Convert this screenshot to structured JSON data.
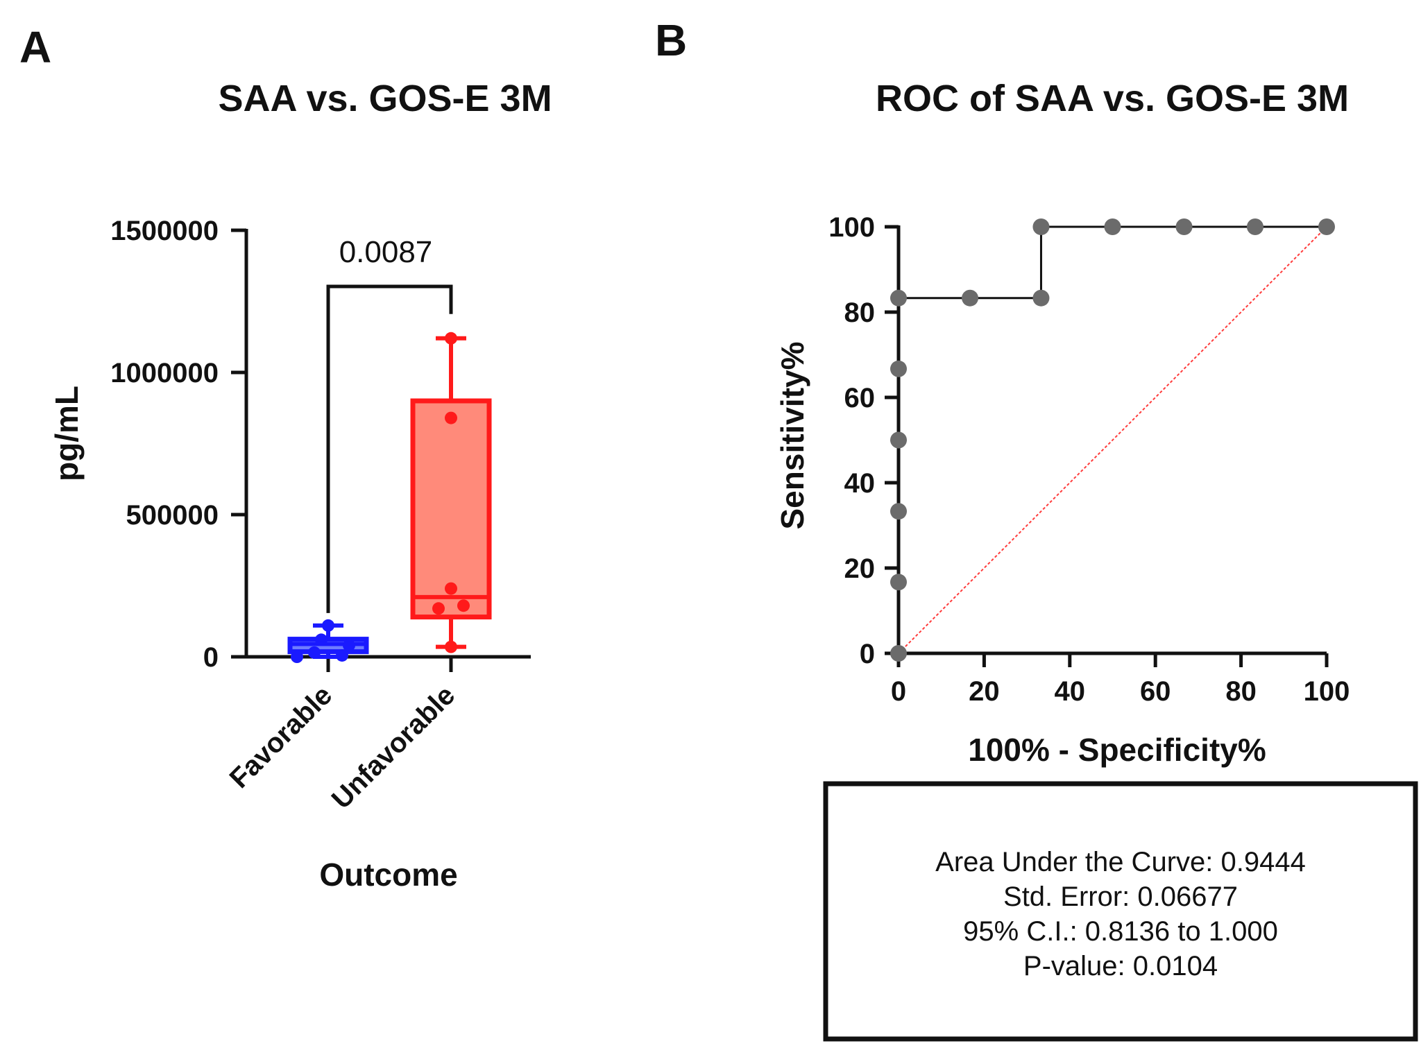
{
  "chart_data": [
    {
      "panel": "A",
      "type": "box",
      "title": "SAA vs. GOS-E 3M",
      "xlabel": "Outcome",
      "ylabel": "pg/mL",
      "ylim": [
        0,
        1500000
      ],
      "yticks": [
        0,
        500000,
        1000000,
        1500000
      ],
      "ytick_labels": [
        "0",
        "500000",
        "1000000",
        "1500000"
      ],
      "categories": [
        "Favorable",
        "Unfavorable"
      ],
      "colors": [
        "#1a1aff",
        "#ff1a1a"
      ],
      "fill_colors": [
        "#6f7cff",
        "#ff8a7a"
      ],
      "boxes": [
        {
          "whisker_low": 0,
          "q1": 18000,
          "median": 45000,
          "q3": 62000,
          "whisker_high": 110000
        },
        {
          "whisker_low": 35000,
          "q1": 140000,
          "median": 210000,
          "q3": 900000,
          "whisker_high": 1120000
        }
      ],
      "points": [
        [
          0,
          5000,
          15000,
          40000,
          60000,
          110000
        ],
        [
          35000,
          170000,
          180000,
          240000,
          840000,
          1120000
        ]
      ],
      "significance": "0.0087"
    },
    {
      "panel": "B",
      "type": "line",
      "title": "ROC of SAA vs. GOS-E 3M",
      "xlabel": "100% - Specificity%",
      "ylabel": "Sensitivity%",
      "xlim": [
        0,
        100
      ],
      "ylim": [
        0,
        100
      ],
      "xticks": [
        0,
        20,
        40,
        60,
        80,
        100
      ],
      "xtick_labels": [
        "0",
        "20",
        "40",
        "60",
        "80",
        "100"
      ],
      "yticks": [
        0,
        20,
        40,
        60,
        80,
        100
      ],
      "ytick_labels": [
        "0",
        "20",
        "40",
        "60",
        "80",
        "100"
      ],
      "x": [
        0,
        0,
        0,
        0,
        0,
        0,
        16.7,
        33.3,
        33.3,
        50,
        66.7,
        83.3,
        100
      ],
      "y": [
        0,
        16.7,
        33.3,
        50,
        66.7,
        83.3,
        83.3,
        83.3,
        100,
        100,
        100,
        100,
        100
      ],
      "reference_line": {
        "color": "#ff3b3b",
        "style": "dotted"
      },
      "stats": [
        "Area Under the Curve: 0.9444",
        "Std. Error: 0.06677",
        "95% C.I.: 0.8136 to 1.000",
        "P-value: 0.0104"
      ]
    }
  ]
}
